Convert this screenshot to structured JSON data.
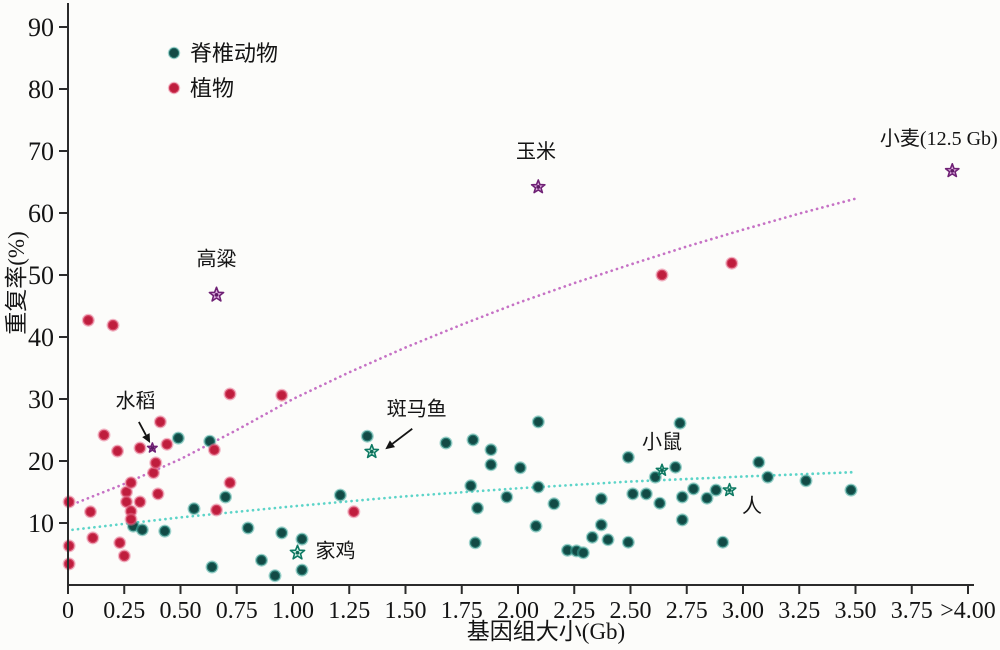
{
  "chart_data": {
    "type": "scatter",
    "title": "",
    "xlabel": "基因组大小(Gb)",
    "ylabel": "重复率(%)",
    "xlim": [
      0,
      4.05
    ],
    "ylim": [
      0,
      93
    ],
    "grid": false,
    "legend_position": "upper-left",
    "x_ticks": [
      {
        "value": 0,
        "label": "0"
      },
      {
        "value": 0.25,
        "label": "0.25"
      },
      {
        "value": 0.5,
        "label": "0.50"
      },
      {
        "value": 0.75,
        "label": "0.75"
      },
      {
        "value": 1.0,
        "label": "1.00"
      },
      {
        "value": 1.25,
        "label": "1.25"
      },
      {
        "value": 1.5,
        "label": "1.50"
      },
      {
        "value": 1.75,
        "label": "1.75"
      },
      {
        "value": 2.0,
        "label": "2.00"
      },
      {
        "value": 2.25,
        "label": "2.25"
      },
      {
        "value": 2.5,
        "label": "2.50"
      },
      {
        "value": 2.75,
        "label": "2.75"
      },
      {
        "value": 3.0,
        "label": "3.00"
      },
      {
        "value": 3.25,
        "label": "3.25"
      },
      {
        "value": 3.5,
        "label": "3.50"
      },
      {
        "value": 3.75,
        "label": "3.75"
      },
      {
        "value": 4.0,
        "label": ">4.00"
      }
    ],
    "y_ticks": [
      {
        "value": 10,
        "label": "10"
      },
      {
        "value": 20,
        "label": "20"
      },
      {
        "value": 30,
        "label": "30"
      },
      {
        "value": 40,
        "label": "40"
      },
      {
        "value": 50,
        "label": "50"
      },
      {
        "value": 60,
        "label": "60"
      },
      {
        "value": 70,
        "label": "70"
      },
      {
        "value": 80,
        "label": "80"
      },
      {
        "value": 90,
        "label": "90"
      }
    ],
    "legend": [
      {
        "label": "脊椎动物",
        "color": "#124a45",
        "halo": "#3fa99e"
      },
      {
        "label": "植物",
        "color": "#bf1d3d",
        "halo": "#e8728f"
      }
    ],
    "series": [
      {
        "id": "vertebrate",
        "name": "脊椎动物",
        "marker": "circle",
        "color": "#124a45",
        "halo_color": "#3fa99e",
        "points": [
          [
            0.29,
            9.5
          ],
          [
            0.33,
            8.9
          ],
          [
            0.43,
            8.7
          ],
          [
            0.49,
            23.7
          ],
          [
            0.56,
            12.3
          ],
          [
            0.63,
            23.2
          ],
          [
            0.7,
            14.2
          ],
          [
            0.64,
            2.9
          ],
          [
            0.8,
            9.2
          ],
          [
            0.86,
            4.0
          ],
          [
            0.95,
            8.4
          ],
          [
            0.92,
            1.5
          ],
          [
            1.04,
            7.4
          ],
          [
            1.04,
            2.4
          ],
          [
            1.21,
            14.5
          ],
          [
            1.33,
            24.0
          ],
          [
            1.68,
            22.9
          ],
          [
            1.8,
            23.4
          ],
          [
            1.88,
            21.8
          ],
          [
            1.88,
            19.4
          ],
          [
            2.09,
            26.3
          ],
          [
            2.01,
            18.9
          ],
          [
            1.79,
            16.0
          ],
          [
            1.82,
            12.4
          ],
          [
            1.81,
            6.8
          ],
          [
            1.95,
            14.2
          ],
          [
            2.09,
            15.8
          ],
          [
            2.08,
            9.5
          ],
          [
            2.16,
            13.1
          ],
          [
            2.22,
            5.6
          ],
          [
            2.26,
            5.5
          ],
          [
            2.29,
            5.2
          ],
          [
            2.33,
            7.7
          ],
          [
            2.37,
            13.9
          ],
          [
            2.37,
            9.7
          ],
          [
            2.4,
            7.3
          ],
          [
            2.49,
            20.6
          ],
          [
            2.49,
            6.9
          ],
          [
            2.51,
            14.7
          ],
          [
            2.57,
            14.7
          ],
          [
            2.61,
            17.4
          ],
          [
            2.63,
            13.2
          ],
          [
            2.7,
            19.0
          ],
          [
            2.72,
            26.1
          ],
          [
            2.73,
            14.2
          ],
          [
            2.78,
            15.5
          ],
          [
            2.73,
            10.5
          ],
          [
            2.84,
            14.0
          ],
          [
            2.88,
            15.3
          ],
          [
            2.91,
            6.9
          ],
          [
            3.07,
            19.8
          ],
          [
            3.11,
            17.4
          ],
          [
            3.28,
            16.8
          ],
          [
            3.48,
            15.3
          ]
        ]
      },
      {
        "id": "plant",
        "name": "植物",
        "marker": "circle",
        "color": "#bf1d3d",
        "halo_color": "#e8728f",
        "points": [
          [
            0.005,
            13.4
          ],
          [
            0.005,
            6.3
          ],
          [
            0.005,
            3.4
          ],
          [
            0.09,
            42.7
          ],
          [
            0.2,
            41.9
          ],
          [
            0.1,
            11.8
          ],
          [
            0.11,
            7.6
          ],
          [
            0.16,
            24.2
          ],
          [
            0.22,
            21.6
          ],
          [
            0.23,
            6.8
          ],
          [
            0.25,
            4.7
          ],
          [
            0.26,
            15.0
          ],
          [
            0.26,
            13.4
          ],
          [
            0.28,
            16.5
          ],
          [
            0.28,
            11.9
          ],
          [
            0.28,
            10.6
          ],
          [
            0.32,
            22.1
          ],
          [
            0.32,
            13.4
          ],
          [
            0.38,
            18.1
          ],
          [
            0.39,
            19.7
          ],
          [
            0.4,
            14.7
          ],
          [
            0.41,
            26.3
          ],
          [
            0.44,
            22.7
          ],
          [
            0.65,
            21.8
          ],
          [
            0.66,
            12.1
          ],
          [
            0.72,
            30.8
          ],
          [
            0.72,
            16.5
          ],
          [
            0.95,
            30.6
          ],
          [
            1.27,
            11.8
          ],
          [
            2.64,
            50.0
          ],
          [
            2.95,
            51.9
          ]
        ]
      }
    ],
    "trend_lines": [
      {
        "id": "plant-trend",
        "series": "植物",
        "color": "#c36ac2",
        "style": "dotted",
        "points": [
          [
            0.02,
            13.0
          ],
          [
            0.25,
            16.3
          ],
          [
            0.5,
            20.3
          ],
          [
            0.75,
            25.0
          ],
          [
            1.0,
            30.0
          ],
          [
            1.25,
            34.3
          ],
          [
            1.5,
            38.3
          ],
          [
            1.75,
            42.0
          ],
          [
            2.0,
            45.5
          ],
          [
            2.25,
            48.7
          ],
          [
            2.5,
            51.7
          ],
          [
            2.75,
            54.6
          ],
          [
            3.0,
            57.3
          ],
          [
            3.25,
            59.9
          ],
          [
            3.5,
            62.3
          ]
        ]
      },
      {
        "id": "vertebrate-trend",
        "series": "脊椎动物",
        "color": "#53d2c5",
        "style": "dotted",
        "points": [
          [
            0.02,
            8.9
          ],
          [
            0.5,
            10.9
          ],
          [
            1.0,
            12.7
          ],
          [
            1.5,
            14.3
          ],
          [
            2.0,
            15.6
          ],
          [
            2.5,
            16.7
          ],
          [
            3.0,
            17.5
          ],
          [
            3.49,
            18.2
          ]
        ]
      }
    ],
    "annotations": [
      {
        "label": "高粱",
        "group": "plant",
        "star": [
          0.66,
          46.8
        ],
        "star_size": 7.5,
        "label_pos": [
          0.66,
          51.5
        ],
        "anchor": "middle"
      },
      {
        "label": "水稻",
        "group": "plant",
        "star": [
          0.375,
          22.1
        ],
        "star_size": 5,
        "label_pos": [
          0.3,
          28.6
        ],
        "anchor": "middle",
        "arrow": {
          "from": [
            0.315,
            26.3
          ],
          "to": [
            0.365,
            22.9
          ]
        }
      },
      {
        "label": "玉米",
        "group": "plant",
        "star": [
          2.09,
          64.2
        ],
        "star_size": 7,
        "label_pos": [
          2.08,
          68.9
        ],
        "anchor": "middle"
      },
      {
        "label": "小麦(12.5 Gb)",
        "group": "plant",
        "star": [
          3.93,
          66.8
        ],
        "star_size": 7,
        "label_pos": [
          3.87,
          71.0
        ],
        "anchor": "middle"
      },
      {
        "label": "斑马鱼",
        "group": "vertebrate",
        "star": [
          1.35,
          21.5
        ],
        "star_size": 7,
        "label_pos": [
          1.55,
          27.3
        ],
        "anchor": "middle",
        "arrow": {
          "from": [
            1.53,
            25.2
          ],
          "to": [
            1.41,
            21.9
          ]
        }
      },
      {
        "label": "家鸡",
        "group": "vertebrate",
        "star": [
          1.02,
          5.2
        ],
        "star_size": 7.5,
        "label_pos": [
          1.1,
          4.4
        ],
        "anchor": "start"
      },
      {
        "label": "小鼠",
        "group": "vertebrate",
        "star": [
          2.64,
          18.5
        ],
        "star_size": 6,
        "label_pos": [
          2.64,
          22.0
        ],
        "anchor": "middle"
      },
      {
        "label": "人",
        "group": "vertebrate",
        "star": [
          2.94,
          15.3
        ],
        "star_size": 6.5,
        "label_pos": [
          3.04,
          11.7
        ],
        "anchor": "middle"
      }
    ],
    "star_styles": {
      "plant": {
        "stroke": "#6f2175",
        "fill": "#e2b4e4",
        "center": "#5f1b66"
      },
      "vertebrate": {
        "stroke": "#0e7a63",
        "fill": "#d6f4e8",
        "center": "#0e6b57"
      }
    }
  }
}
